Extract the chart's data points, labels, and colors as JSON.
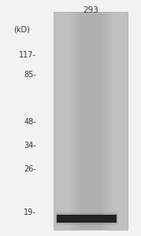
{
  "fig_width": 1.79,
  "fig_height": 3.0,
  "dpi": 100,
  "bg_color": "#f2f2f2",
  "lane_label": "293",
  "lane_label_fontsize": 7.5,
  "kd_label": "(kD)",
  "kd_label_fontsize": 7,
  "marker_labels": [
    "117-",
    "85-",
    "48-",
    "34-",
    "26-",
    "19-"
  ],
  "marker_fontsize": 7,
  "gel_color": "#c0c0c0",
  "band_color": "#222222"
}
